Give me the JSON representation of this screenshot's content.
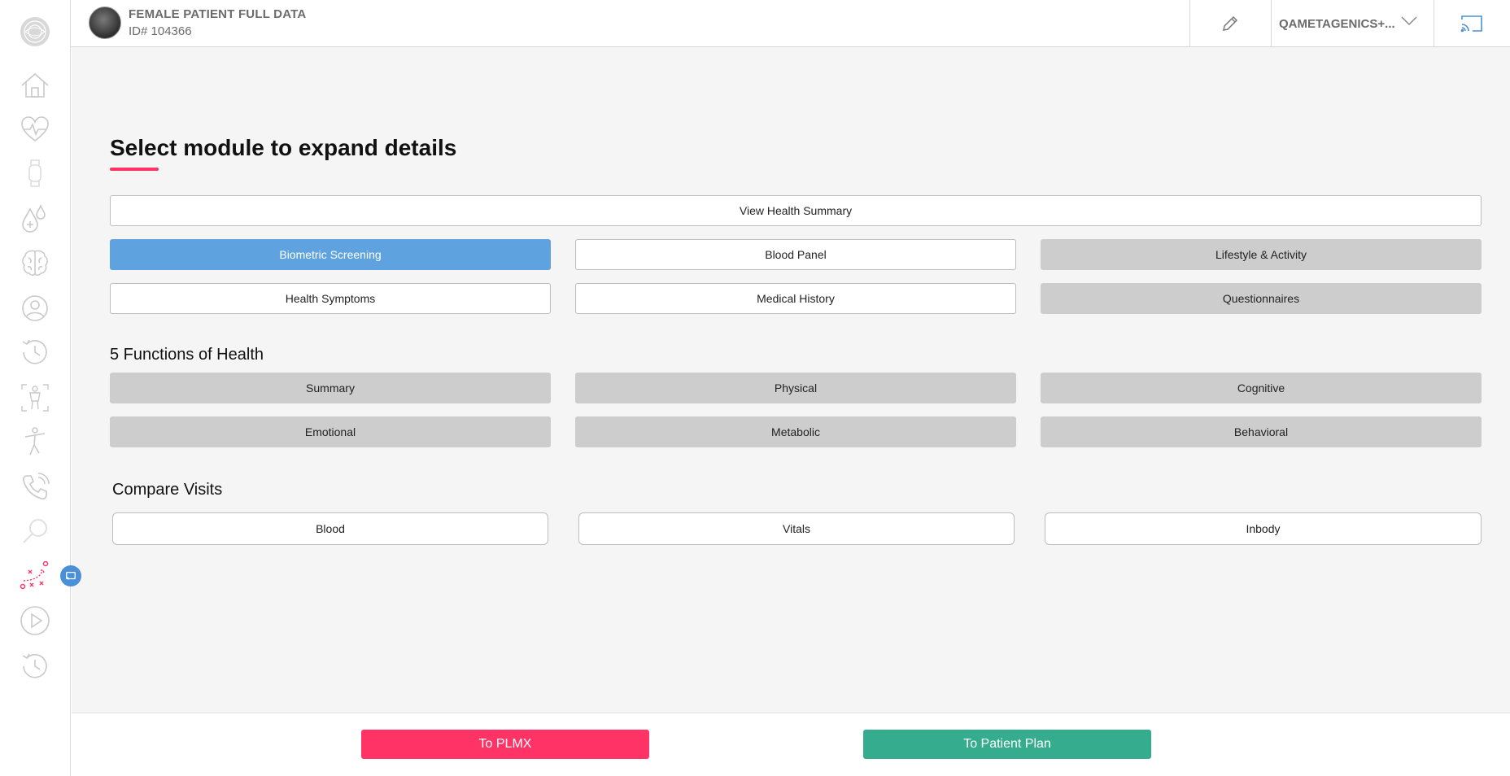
{
  "header": {
    "patient_name": "FEMALE PATIENT FULL DATA",
    "patient_id": "ID# 104366",
    "org_label": "QAMETAGENICS+..."
  },
  "sidebar": {
    "icons": [
      "logo-icon",
      "home-icon",
      "heart-pulse-icon",
      "wearable-icon",
      "blood-drop-icon",
      "brain-icon",
      "user-icon",
      "history-icon",
      "body-scan-icon",
      "activity-figure-icon",
      "phone-icon",
      "search-icon",
      "strategy-icon",
      "play-icon",
      "history-icon"
    ],
    "accent_color": "#ff3366"
  },
  "main": {
    "title": "Select module to expand details",
    "view_summary": "View Health Summary",
    "modules": [
      {
        "label": "Biometric Screening",
        "state": "active"
      },
      {
        "label": "Blood Panel",
        "state": "enabled"
      },
      {
        "label": "Lifestyle & Activity",
        "state": "disabled"
      },
      {
        "label": "Health Symptoms",
        "state": "enabled"
      },
      {
        "label": "Medical History",
        "state": "enabled"
      },
      {
        "label": "Questionnaires",
        "state": "disabled"
      }
    ],
    "functions_label": "5 Functions of Health",
    "functions": [
      "Summary",
      "Physical",
      "Cognitive",
      "Emotional",
      "Metabolic",
      "Behavioral"
    ],
    "compare_label": "Compare Visits",
    "compare": [
      "Blood",
      "Vitals",
      "Inbody"
    ]
  },
  "footer": {
    "plmx_label": "To PLMX",
    "plan_label": "To Patient Plan"
  },
  "colors": {
    "active_blue": "#5ea3e0",
    "disabled_gray": "#cdcdcd",
    "pink": "#ff3366",
    "green": "#36ac8e"
  }
}
